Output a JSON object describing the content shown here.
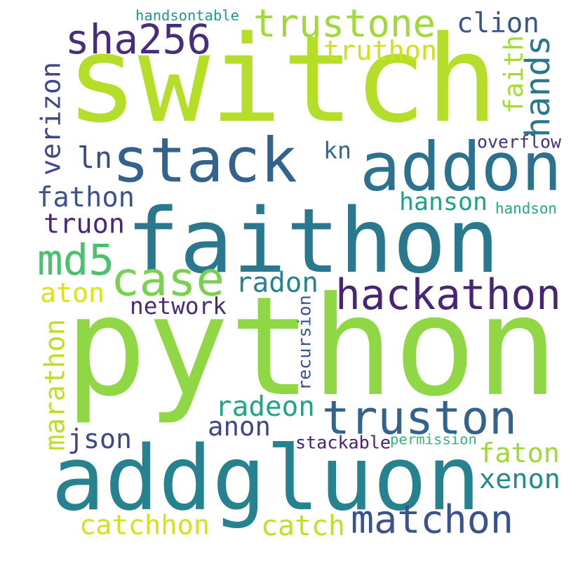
{
  "words": [
    {
      "text": "python",
      "color": "#8fd744",
      "orient": "h"
    },
    {
      "text": "switch",
      "color": "#b5de2b",
      "orient": "h"
    },
    {
      "text": "faithon",
      "color": "#2a788e",
      "orient": "h"
    },
    {
      "text": "addgluon",
      "color": "#26828e",
      "orient": "h"
    },
    {
      "text": "addon",
      "color": "#2c728e",
      "orient": "h"
    },
    {
      "text": "stack",
      "color": "#33638d",
      "orient": "h"
    },
    {
      "text": "hackathon",
      "color": "#482475",
      "orient": "h"
    },
    {
      "text": "truston",
      "color": "#33638d",
      "orient": "h"
    },
    {
      "text": "matchon",
      "color": "#3b528b",
      "orient": "h"
    },
    {
      "text": "trustone",
      "color": "#a0da39",
      "orient": "h"
    },
    {
      "text": "sha256",
      "color": "#472d7b",
      "orient": "h"
    },
    {
      "text": "case",
      "color": "#7ad151",
      "orient": "h"
    },
    {
      "text": "md5",
      "color": "#4ac16d",
      "orient": "h"
    },
    {
      "text": "clion",
      "color": "#39568c",
      "orient": "h"
    },
    {
      "text": "truthon",
      "color": "#d0e11c",
      "orient": "h"
    },
    {
      "text": "faith",
      "color": "#a5db36",
      "orient": "v"
    },
    {
      "text": "hands",
      "color": "#2a788e",
      "orient": "v"
    },
    {
      "text": "verizon",
      "color": "#3e4989",
      "orient": "v"
    },
    {
      "text": "ln",
      "color": "#3e4989",
      "orient": "h"
    },
    {
      "text": "kn",
      "color": "#31688e",
      "orient": "h"
    },
    {
      "text": "overflow",
      "color": "#46327e",
      "orient": "h"
    },
    {
      "text": "fathon",
      "color": "#3b528b",
      "orient": "h"
    },
    {
      "text": "truon",
      "color": "#482878",
      "orient": "h"
    },
    {
      "text": "hanson",
      "color": "#1fa187",
      "orient": "h"
    },
    {
      "text": "handson",
      "color": "#22a884",
      "orient": "h"
    },
    {
      "text": "radon",
      "color": "#26828e",
      "orient": "h"
    },
    {
      "text": "aton",
      "color": "#dde318",
      "orient": "h"
    },
    {
      "text": "network",
      "color": "#472a7a",
      "orient": "h"
    },
    {
      "text": "recursion",
      "color": "#39568c",
      "orient": "v"
    },
    {
      "text": "marathon",
      "color": "#bddf26",
      "orient": "v"
    },
    {
      "text": "radeon",
      "color": "#20a486",
      "orient": "h"
    },
    {
      "text": "anon",
      "color": "#404688",
      "orient": "h"
    },
    {
      "text": "json",
      "color": "#414487",
      "orient": "h"
    },
    {
      "text": "stackable",
      "color": "#482173",
      "orient": "h"
    },
    {
      "text": "permission",
      "color": "#35b779",
      "orient": "h"
    },
    {
      "text": "faton",
      "color": "#a0da39",
      "orient": "h"
    },
    {
      "text": "xenon",
      "color": "#23898e",
      "orient": "h"
    },
    {
      "text": "catchhon",
      "color": "#d5e21a",
      "orient": "h"
    },
    {
      "text": "catch",
      "color": "#c2df23",
      "orient": "h"
    },
    {
      "text": "handsontable",
      "color": "#1f988b",
      "orient": "h"
    }
  ]
}
